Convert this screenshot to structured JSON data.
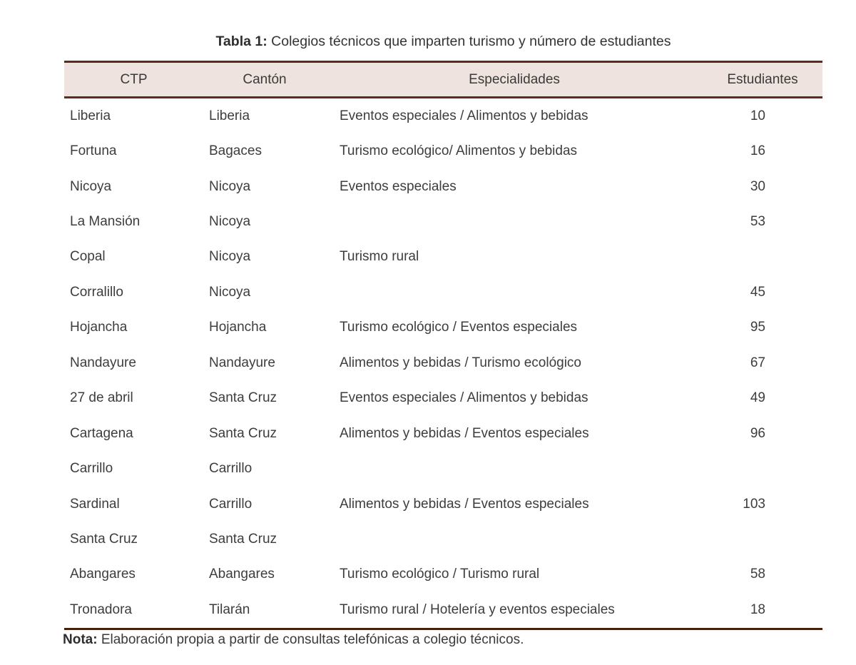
{
  "title": {
    "label": "Tabla 1:",
    "text": " Colegios técnicos que imparten turismo y número de estudiantes"
  },
  "table": {
    "columns": [
      "CTP",
      "Cantón",
      "Especialidades",
      "Estudiantes"
    ],
    "rows": [
      [
        "Liberia",
        "Liberia",
        "Eventos especiales / Alimentos y bebidas",
        "10"
      ],
      [
        "Fortuna",
        "Bagaces",
        "Turismo ecológico/ Alimentos y bebidas",
        "16"
      ],
      [
        "Nicoya",
        "Nicoya",
        "Eventos especiales",
        "30"
      ],
      [
        "La Mansión",
        "Nicoya",
        "",
        "53"
      ],
      [
        "Copal",
        "Nicoya",
        "Turismo rural",
        ""
      ],
      [
        "Corralillo",
        "Nicoya",
        "",
        "45"
      ],
      [
        "Hojancha",
        "Hojancha",
        "Turismo ecológico / Eventos especiales",
        "95"
      ],
      [
        "Nandayure",
        "Nandayure",
        "Alimentos y bebidas / Turismo ecológico",
        "67"
      ],
      [
        "27 de abril",
        "Santa Cruz",
        "Eventos especiales / Alimentos y bebidas",
        "49"
      ],
      [
        "Cartagena",
        "Santa Cruz",
        "Alimentos y bebidas / Eventos especiales",
        "96"
      ],
      [
        "Carrillo",
        "Carrillo",
        "",
        ""
      ],
      [
        "Sardinal",
        "Carrillo",
        "Alimentos y bebidas / Eventos especiales",
        "103"
      ],
      [
        "Santa Cruz",
        "Santa Cruz",
        "",
        ""
      ],
      [
        "Abangares",
        "Abangares",
        "Turismo ecológico / Turismo rural",
        "58"
      ],
      [
        "Tronadora",
        "Tilarán",
        "Turismo rural / Hotelería y eventos especiales",
        "18"
      ]
    ]
  },
  "note": {
    "label": "Nota:",
    "text": " Elaboración propia a partir de consultas telefónicas a colegio técnicos."
  },
  "colors": {
    "header_bg": "#eee3de",
    "border_brown": "#5c2d1e",
    "border_dark": "#46200f",
    "text": "#3d3d3d"
  }
}
